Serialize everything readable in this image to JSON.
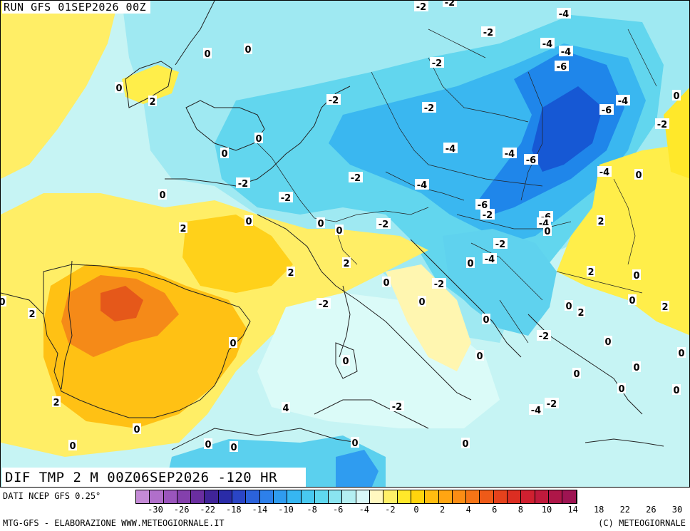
{
  "header": {
    "run_title": "RUN GFS 01SEP2026 00Z",
    "product_title": "DIF TMP 2 M 00Z06SEP2026 -120 HR"
  },
  "footer": {
    "data_source": "DATI NCEP GFS 0.25°",
    "credit_left": "MTG-GFS - ELABORAZIONE WWW.METEOGIORNALE.IT",
    "credit_right": "(C) METEOGIORNALE"
  },
  "map": {
    "description_icon": "temperature-anomaly-map",
    "colors": {
      "sea": "#c6f4f4",
      "zero_band": "#ddfbfb",
      "cold_1": "#93e6f0",
      "cold_2": "#57d3ee",
      "cold_3": "#35b6f0",
      "cold_4": "#1f85ea",
      "cold_5": "#1550d0",
      "warm_0": "#fff8b8",
      "warm_1": "#ffee4a",
      "warm_2": "#ffd11a",
      "warm_3": "#ffad0e",
      "warm_4": "#f47f14",
      "warm_5": "#e5581a",
      "border": "#222222"
    },
    "labels": [
      {
        "text": "-2"
      },
      {
        "text": "-2"
      },
      {
        "text": "-4"
      },
      {
        "text": "-2"
      },
      {
        "text": "-4"
      },
      {
        "text": "-4"
      },
      {
        "text": "0"
      },
      {
        "text": "0"
      },
      {
        "text": "-2"
      },
      {
        "text": "-6"
      },
      {
        "text": "0"
      },
      {
        "text": "2"
      },
      {
        "text": "-2"
      },
      {
        "text": "-2"
      },
      {
        "text": "-4"
      },
      {
        "text": "-6"
      },
      {
        "text": "0"
      },
      {
        "text": "-2"
      },
      {
        "text": "0"
      },
      {
        "text": "0"
      },
      {
        "text": "-4"
      },
      {
        "text": "-4"
      },
      {
        "text": "-6"
      },
      {
        "text": "-4"
      },
      {
        "text": "0"
      },
      {
        "text": "-2"
      },
      {
        "text": "-2"
      },
      {
        "text": "-4"
      },
      {
        "text": "0"
      },
      {
        "text": "-2"
      },
      {
        "text": "-6"
      },
      {
        "text": "-2"
      },
      {
        "text": "-6"
      },
      {
        "text": "-4"
      },
      {
        "text": "0"
      },
      {
        "text": "2"
      },
      {
        "text": "0"
      },
      {
        "text": "0"
      },
      {
        "text": "0"
      },
      {
        "text": "-2"
      },
      {
        "text": "2"
      },
      {
        "text": "-2"
      },
      {
        "text": "-4"
      },
      {
        "text": "0"
      },
      {
        "text": "2"
      },
      {
        "text": "2"
      },
      {
        "text": "2"
      },
      {
        "text": "0"
      },
      {
        "text": "-2"
      },
      {
        "text": "0"
      },
      {
        "text": "0"
      },
      {
        "text": "-2"
      },
      {
        "text": "0"
      },
      {
        "text": "2"
      },
      {
        "text": "0"
      },
      {
        "text": "2"
      },
      {
        "text": "0"
      },
      {
        "text": "0"
      },
      {
        "text": "2"
      },
      {
        "text": "0"
      },
      {
        "text": "-2"
      },
      {
        "text": "0"
      },
      {
        "text": "0"
      },
      {
        "text": "0"
      },
      {
        "text": "0"
      },
      {
        "text": "0"
      },
      {
        "text": "0"
      },
      {
        "text": "0"
      },
      {
        "text": "0"
      },
      {
        "text": "2"
      },
      {
        "text": "4"
      },
      {
        "text": "-2"
      },
      {
        "text": "-4"
      },
      {
        "text": "-2"
      },
      {
        "text": "0"
      },
      {
        "text": "0"
      },
      {
        "text": "0"
      },
      {
        "text": "0"
      },
      {
        "text": "0"
      },
      {
        "text": "0"
      }
    ]
  },
  "legend": {
    "colors": [
      "#c48ad6",
      "#b06fca",
      "#9a55bc",
      "#8440ac",
      "#6a2ea0",
      "#402498",
      "#2a2ba8",
      "#2a45c6",
      "#2b62db",
      "#2d80ea",
      "#2f9cf0",
      "#36b6f2",
      "#48c9f0",
      "#5fd8ef",
      "#8ae4f0",
      "#b4eff2",
      "#d9f8f8",
      "#fff8c0",
      "#fff068",
      "#ffe82a",
      "#ffd40d",
      "#ffbd10",
      "#ffa512",
      "#fb8d14",
      "#f57416",
      "#ee5a18",
      "#e5421c",
      "#dc2e22",
      "#d02030",
      "#c01a3c",
      "#ae1648",
      "#9e1452"
    ],
    "ticks": [
      "-30",
      "-26",
      "-22",
      "-18",
      "-14",
      "-10",
      "-8",
      "-6",
      "-4",
      "-2",
      "0",
      "2",
      "4",
      "6",
      "8",
      "10",
      "14",
      "18",
      "22",
      "26",
      "30"
    ]
  }
}
